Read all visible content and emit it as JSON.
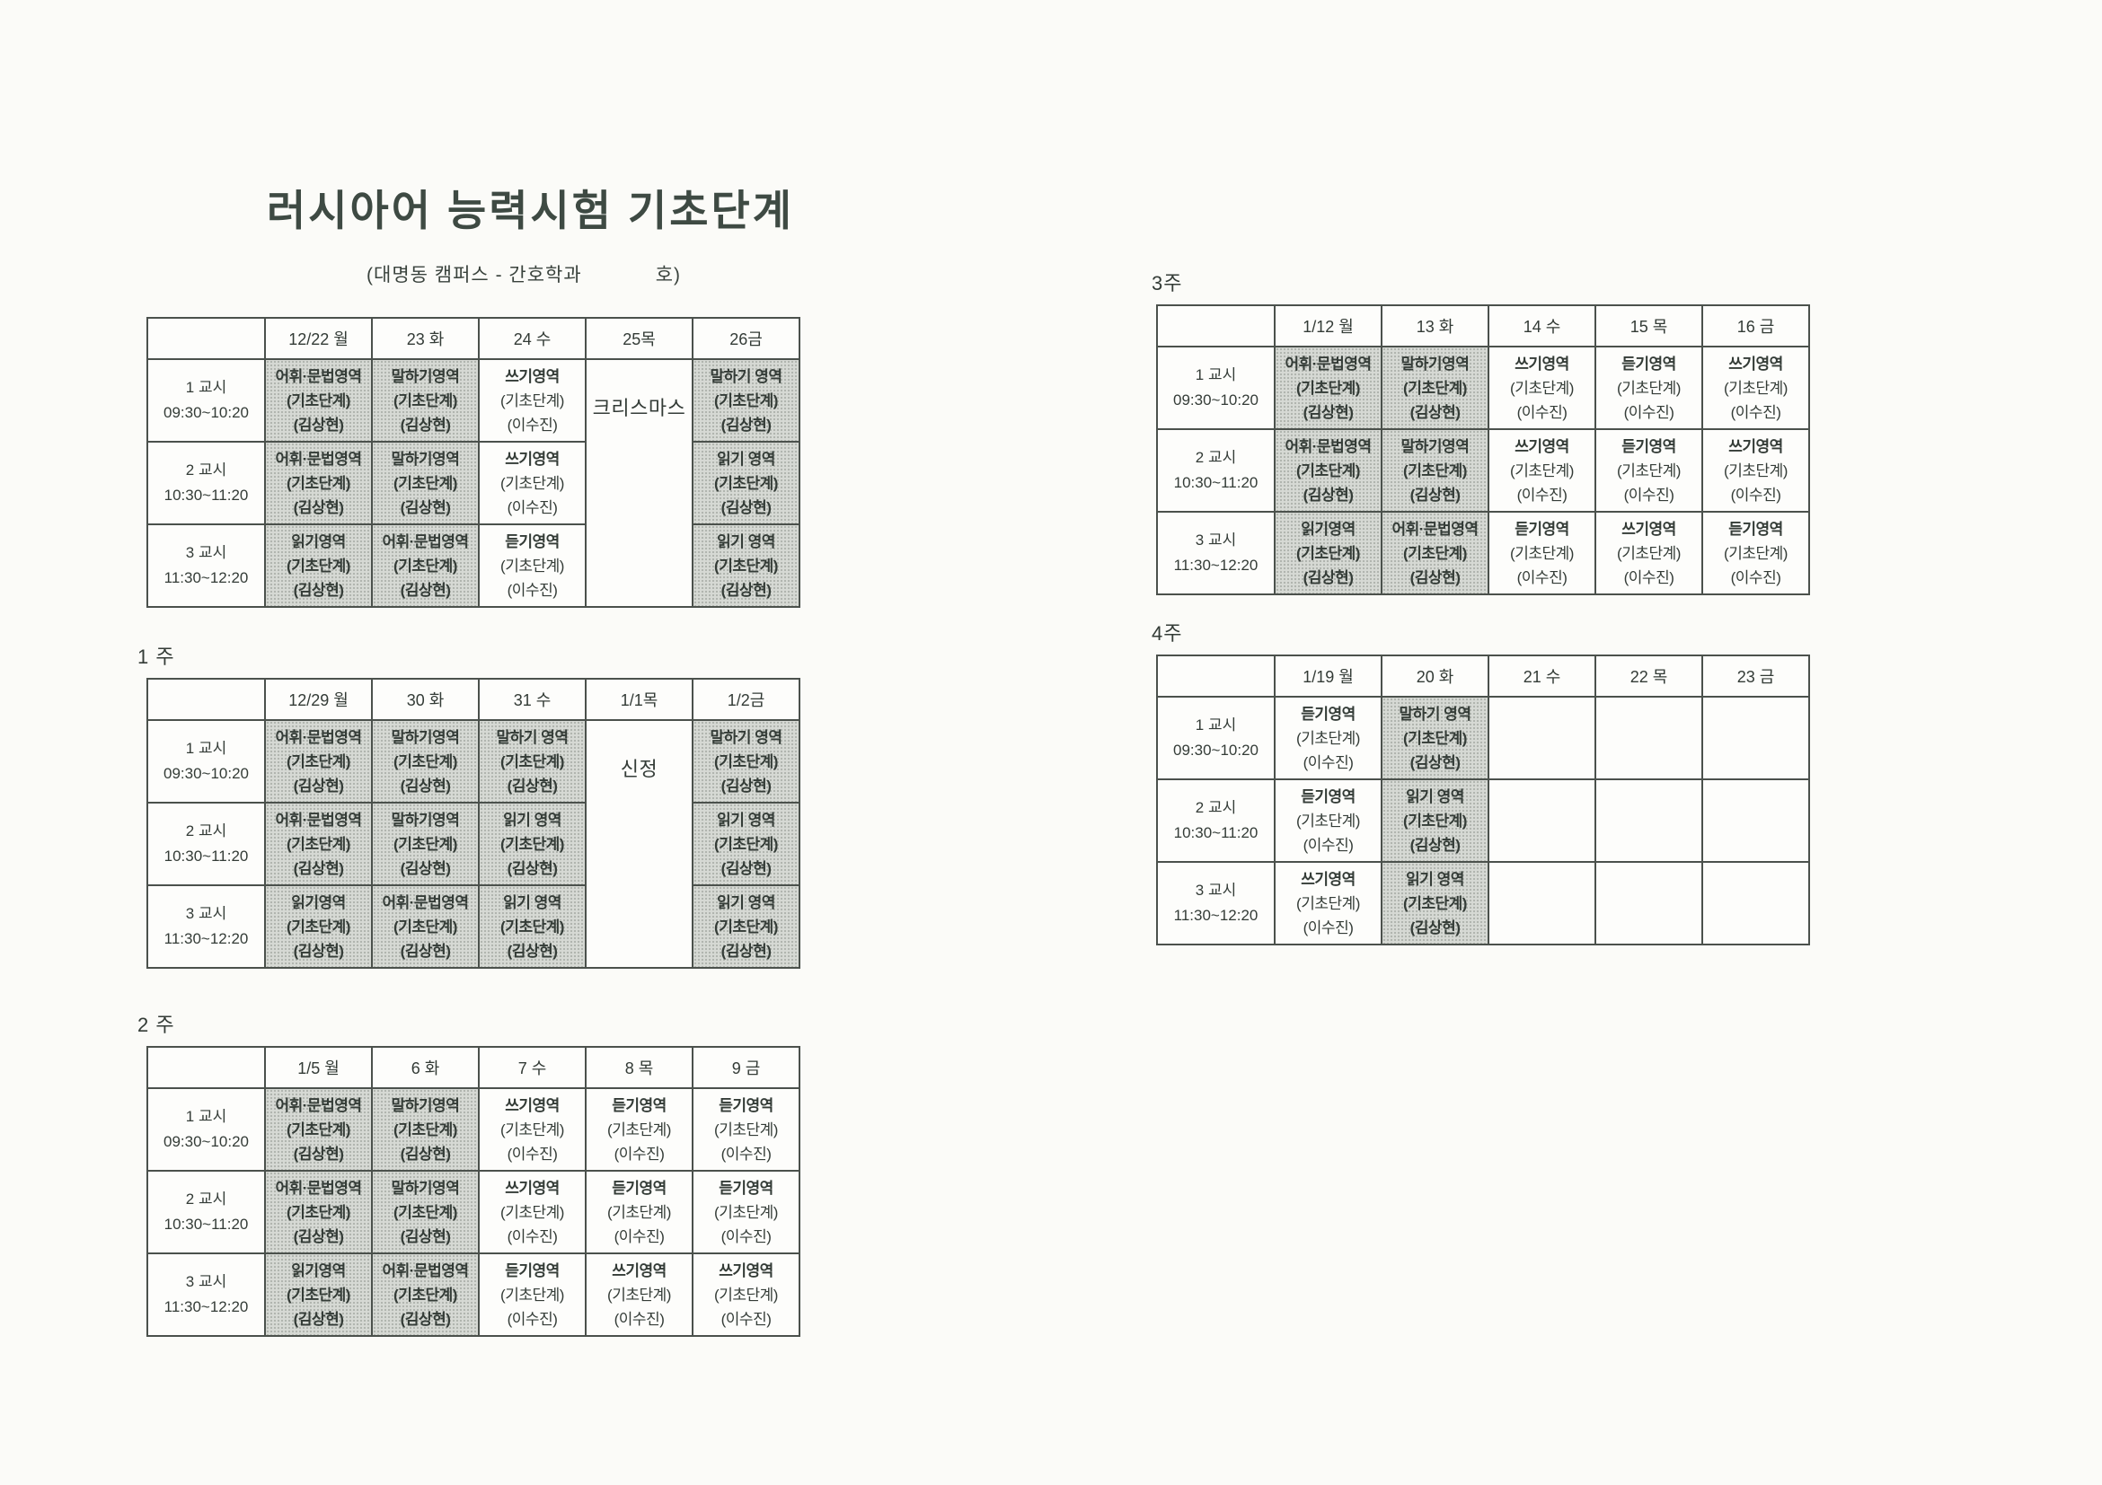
{
  "page": {
    "title": "러시아어 능력시험 기초단계",
    "subtitle": "(대명동 캠퍼스 - 간호학과            호)"
  },
  "colors": {
    "page_background": "#fbfbf8",
    "shaded_cell": "#d6d9d4",
    "border": "#4b514c",
    "text": "#343c37"
  },
  "periods": [
    {
      "label": "1 교시",
      "time": "09:30~10:20"
    },
    {
      "label": "2 교시",
      "time": "10:30~11:20"
    },
    {
      "label": "3 교시",
      "time": "11:30~12:20"
    }
  ],
  "tables": [
    {
      "label": "",
      "days": [
        "12/22 월",
        "23 화",
        "24 수",
        "25목",
        "26금"
      ],
      "rows": [
        [
          {
            "lines": [
              "어휘·문법영역",
              "(기초단계)",
              "(김상현)"
            ],
            "shaded": true
          },
          {
            "lines": [
              "말하기영역",
              "(기초단계)",
              "(김상현)"
            ],
            "shaded": true
          },
          {
            "lines": [
              "쓰기영역",
              "(기초단계)",
              "(이수진)"
            ],
            "shaded": false
          },
          {
            "lines": [
              "크리스마스"
            ],
            "shaded": false,
            "rowspan": 3
          },
          {
            "lines": [
              "말하기 영역",
              "(기초단계)",
              "(김상현)"
            ],
            "shaded": true
          }
        ],
        [
          {
            "lines": [
              "어휘·문법영역",
              "(기초단계)",
              "(김상현)"
            ],
            "shaded": true
          },
          {
            "lines": [
              "말하기영역",
              "(기초단계)",
              "(김상현)"
            ],
            "shaded": true
          },
          {
            "lines": [
              "쓰기영역",
              "(기초단계)",
              "(이수진)"
            ],
            "shaded": false
          },
          null,
          {
            "lines": [
              "읽기 영역",
              "(기초단계)",
              "(김상현)"
            ],
            "shaded": true
          }
        ],
        [
          {
            "lines": [
              "읽기영역",
              "(기초단계)",
              "(김상현)"
            ],
            "shaded": true
          },
          {
            "lines": [
              "어휘·문법영역",
              "(기초단계)",
              "(김상현)"
            ],
            "shaded": true
          },
          {
            "lines": [
              "듣기영역",
              "(기초단계)",
              "(이수진)"
            ],
            "shaded": false
          },
          null,
          {
            "lines": [
              "읽기 영역",
              "(기초단계)",
              "(김상현)"
            ],
            "shaded": true
          }
        ]
      ]
    },
    {
      "label": "1 주",
      "days": [
        "12/29 월",
        "30 화",
        "31 수",
        "1/1목",
        "1/2금"
      ],
      "rows": [
        [
          {
            "lines": [
              "어휘·문법영역",
              "(기초단계)",
              "(김상현)"
            ],
            "shaded": true
          },
          {
            "lines": [
              "말하기영역",
              "(기초단계)",
              "(김상현)"
            ],
            "shaded": true
          },
          {
            "lines": [
              "말하기 영역",
              "(기초단계)",
              "(김상현)"
            ],
            "shaded": true
          },
          {
            "lines": [
              "신정"
            ],
            "shaded": false,
            "rowspan": 3
          },
          {
            "lines": [
              "말하기 영역",
              "(기초단계)",
              "(김상현)"
            ],
            "shaded": true
          }
        ],
        [
          {
            "lines": [
              "어휘·문법영역",
              "(기초단계)",
              "(김상현)"
            ],
            "shaded": true
          },
          {
            "lines": [
              "말하기영역",
              "(기초단계)",
              "(김상현)"
            ],
            "shaded": true
          },
          {
            "lines": [
              "읽기 영역",
              "(기초단계)",
              "(김상현)"
            ],
            "shaded": true
          },
          null,
          {
            "lines": [
              "읽기 영역",
              "(기초단계)",
              "(김상현)"
            ],
            "shaded": true
          }
        ],
        [
          {
            "lines": [
              "읽기영역",
              "(기초단계)",
              "(김상현)"
            ],
            "shaded": true
          },
          {
            "lines": [
              "어휘·문법영역",
              "(기초단계)",
              "(김상현)"
            ],
            "shaded": true
          },
          {
            "lines": [
              "읽기 영역",
              "(기초단계)",
              "(김상현)"
            ],
            "shaded": true
          },
          null,
          {
            "lines": [
              "읽기 영역",
              "(기초단계)",
              "(김상현)"
            ],
            "shaded": true
          }
        ]
      ]
    },
    {
      "label": "2 주",
      "days": [
        "1/5 월",
        "6 화",
        "7 수",
        "8 목",
        "9 금"
      ],
      "rows": [
        [
          {
            "lines": [
              "어휘·문법영역",
              "(기초단계)",
              "(김상현)"
            ],
            "shaded": true
          },
          {
            "lines": [
              "말하기영역",
              "(기초단계)",
              "(김상현)"
            ],
            "shaded": true
          },
          {
            "lines": [
              "쓰기영역",
              "(기초단계)",
              "(이수진)"
            ],
            "shaded": false
          },
          {
            "lines": [
              "듣기영역",
              "(기초단계)",
              "(이수진)"
            ],
            "shaded": false
          },
          {
            "lines": [
              "듣기영역",
              "(기초단계)",
              "(이수진)"
            ],
            "shaded": false
          }
        ],
        [
          {
            "lines": [
              "어휘·문법영역",
              "(기초단계)",
              "(김상현)"
            ],
            "shaded": true
          },
          {
            "lines": [
              "말하기영역",
              "(기초단계)",
              "(김상현)"
            ],
            "shaded": true
          },
          {
            "lines": [
              "쓰기영역",
              "(기초단계)",
              "(이수진)"
            ],
            "shaded": false
          },
          {
            "lines": [
              "듣기영역",
              "(기초단계)",
              "(이수진)"
            ],
            "shaded": false
          },
          {
            "lines": [
              "듣기영역",
              "(기초단계)",
              "(이수진)"
            ],
            "shaded": false
          }
        ],
        [
          {
            "lines": [
              "읽기영역",
              "(기초단계)",
              "(김상현)"
            ],
            "shaded": true
          },
          {
            "lines": [
              "어휘·문법영역",
              "(기초단계)",
              "(김상현)"
            ],
            "shaded": true
          },
          {
            "lines": [
              "듣기영역",
              "(기초단계)",
              "(이수진)"
            ],
            "shaded": false
          },
          {
            "lines": [
              "쓰기영역",
              "(기초단계)",
              "(이수진)"
            ],
            "shaded": false
          },
          {
            "lines": [
              "쓰기영역",
              "(기초단계)",
              "(이수진)"
            ],
            "shaded": false
          }
        ]
      ]
    },
    {
      "label": "3주",
      "days": [
        "1/12 월",
        "13 화",
        "14 수",
        "15 목",
        "16 금"
      ],
      "rows": [
        [
          {
            "lines": [
              "어휘·문법영역",
              "(기초단계)",
              "(김상현)"
            ],
            "shaded": true
          },
          {
            "lines": [
              "말하기영역",
              "(기초단계)",
              "(김상현)"
            ],
            "shaded": true
          },
          {
            "lines": [
              "쓰기영역",
              "(기초단계)",
              "(이수진)"
            ],
            "shaded": false
          },
          {
            "lines": [
              "듣기영역",
              "(기초단계)",
              "(이수진)"
            ],
            "shaded": false
          },
          {
            "lines": [
              "쓰기영역",
              "(기초단계)",
              "(이수진)"
            ],
            "shaded": false
          }
        ],
        [
          {
            "lines": [
              "어휘·문법영역",
              "(기초단계)",
              "(김상현)"
            ],
            "shaded": true
          },
          {
            "lines": [
              "말하기영역",
              "(기초단계)",
              "(김상현)"
            ],
            "shaded": true
          },
          {
            "lines": [
              "쓰기영역",
              "(기초단계)",
              "(이수진)"
            ],
            "shaded": false
          },
          {
            "lines": [
              "듣기영역",
              "(기초단계)",
              "(이수진)"
            ],
            "shaded": false
          },
          {
            "lines": [
              "쓰기영역",
              "(기초단계)",
              "(이수진)"
            ],
            "shaded": false
          }
        ],
        [
          {
            "lines": [
              "읽기영역",
              "(기초단계)",
              "(김상현)"
            ],
            "shaded": true
          },
          {
            "lines": [
              "어휘·문법영역",
              "(기초단계)",
              "(김상현)"
            ],
            "shaded": true
          },
          {
            "lines": [
              "듣기영역",
              "(기초단계)",
              "(이수진)"
            ],
            "shaded": false
          },
          {
            "lines": [
              "쓰기영역",
              "(기초단계)",
              "(이수진)"
            ],
            "shaded": false
          },
          {
            "lines": [
              "듣기영역",
              "(기초단계)",
              "(이수진)"
            ],
            "shaded": false
          }
        ]
      ]
    },
    {
      "label": "4주",
      "days": [
        "1/19 월",
        "20 화",
        "21 수",
        "22 목",
        "23 금"
      ],
      "rows": [
        [
          {
            "lines": [
              "듣기영역",
              "(기초단계)",
              "(이수진)"
            ],
            "shaded": false
          },
          {
            "lines": [
              "말하기 영역",
              "(기초단계)",
              "(김상현)"
            ],
            "shaded": true
          },
          {
            "lines": [],
            "shaded": false
          },
          {
            "lines": [],
            "shaded": false
          },
          {
            "lines": [],
            "shaded": false
          }
        ],
        [
          {
            "lines": [
              "듣기영역",
              "(기초단계)",
              "(이수진)"
            ],
            "shaded": false
          },
          {
            "lines": [
              "읽기 영역",
              "(기초단계)",
              "(김상현)"
            ],
            "shaded": true
          },
          {
            "lines": [],
            "shaded": false
          },
          {
            "lines": [],
            "shaded": false
          },
          {
            "lines": [],
            "shaded": false
          }
        ],
        [
          {
            "lines": [
              "쓰기영역",
              "(기초단계)",
              "(이수진)"
            ],
            "shaded": false
          },
          {
            "lines": [
              "읽기 영역",
              "(기초단계)",
              "(김상현)"
            ],
            "shaded": true
          },
          {
            "lines": [],
            "shaded": false
          },
          {
            "lines": [],
            "shaded": false
          },
          {
            "lines": [],
            "shaded": false
          }
        ]
      ]
    }
  ],
  "layout_hints": {
    "header_col_width": 131,
    "day_col_width": 119
  }
}
